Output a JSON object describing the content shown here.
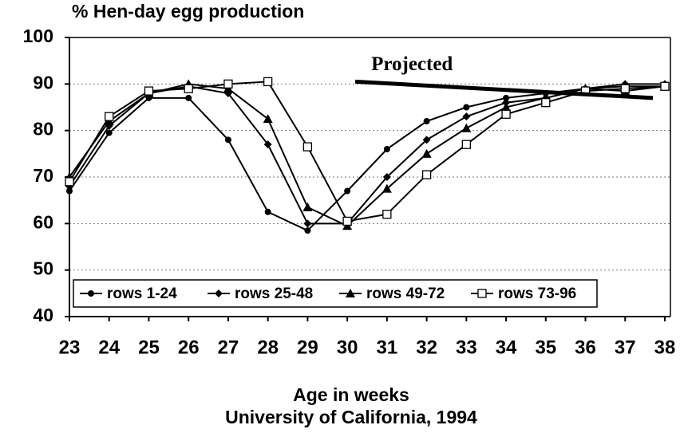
{
  "chart_data": {
    "type": "line",
    "title": "% Hen-day  egg production",
    "xlabel": "Age in weeks",
    "caption": "University of California, 1994",
    "x": [
      23,
      24,
      25,
      26,
      27,
      28,
      29,
      30,
      31,
      32,
      33,
      34,
      35,
      36,
      37,
      38
    ],
    "xlim": [
      23,
      38
    ],
    "xticks": [
      23,
      24,
      25,
      26,
      27,
      28,
      29,
      30,
      31,
      32,
      33,
      34,
      35,
      36,
      37,
      38
    ],
    "ylim": [
      40,
      100
    ],
    "yticks": [
      40,
      50,
      60,
      70,
      80,
      90,
      100
    ],
    "grid": true,
    "legend": "bottom-left",
    "series": [
      {
        "name": "rows 1-24",
        "color": "#000000",
        "marker": "circle",
        "values": [
          67,
          79.5,
          87,
          87,
          78,
          62.5,
          58.5,
          67,
          76,
          82,
          85,
          87,
          88,
          89,
          89.5,
          89.5
        ]
      },
      {
        "name": "rows 25-48",
        "color": "#000000",
        "marker": "diamond",
        "values": [
          68,
          81,
          88,
          89.5,
          88,
          77,
          60,
          60,
          70,
          78,
          83,
          86,
          87,
          89,
          90,
          90
        ]
      },
      {
        "name": "rows 49-72",
        "color": "#000000",
        "marker": "triangle",
        "values": [
          70,
          82,
          88,
          90,
          89,
          82.5,
          63.5,
          59.5,
          67.5,
          75,
          80.5,
          85,
          87,
          89,
          88.5,
          89.5
        ]
      },
      {
        "name": "rows 73-96",
        "color": "#000000",
        "marker": "square",
        "values": [
          69,
          83,
          88.5,
          89,
          90,
          90.5,
          76.5,
          60.5,
          62,
          70.5,
          77,
          83.5,
          86,
          88.5,
          89,
          89.5
        ]
      }
    ],
    "annotation": {
      "text": "Projected",
      "x": [
        30.2,
        37.7
      ],
      "y": [
        90.5,
        87
      ]
    }
  }
}
